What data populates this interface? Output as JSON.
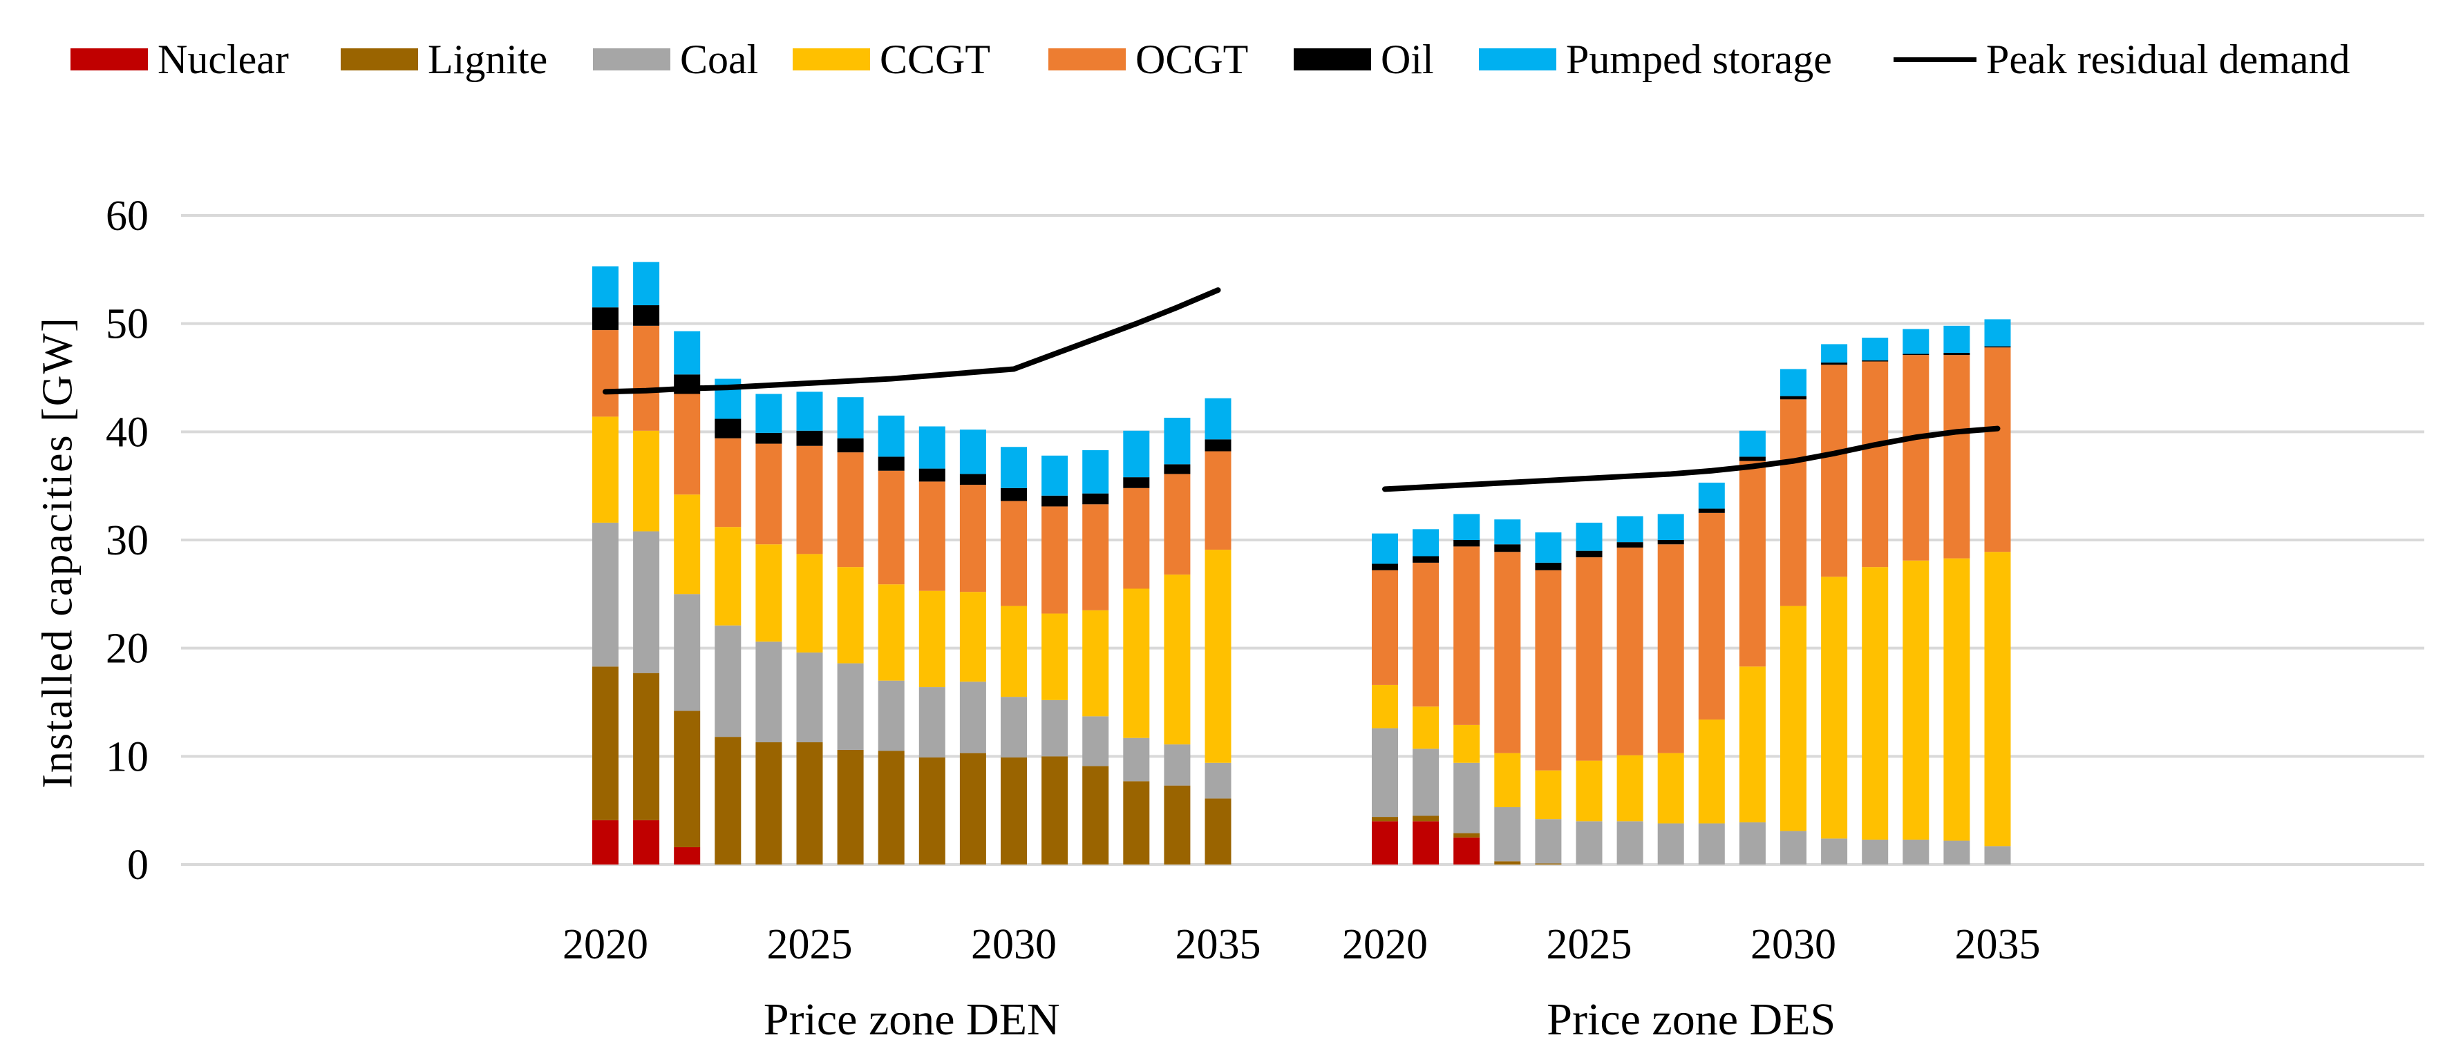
{
  "figure": {
    "description": "Stacked bar chart of installed capacities by technology with peak residual demand line, for two German price zones",
    "background_color": "#FFFFFF"
  },
  "legend": {
    "items": [
      {
        "label": "Nuclear",
        "color": "#C00000",
        "symbol": "swatch"
      },
      {
        "label": "Lignite",
        "color": "#9A6400",
        "symbol": "swatch"
      },
      {
        "label": "Coal",
        "color": "#A6A6A6",
        "symbol": "swatch"
      },
      {
        "label": "CCGT",
        "color": "#FFC000",
        "symbol": "swatch"
      },
      {
        "label": "OCGT",
        "color": "#ED7D31",
        "symbol": "swatch"
      },
      {
        "label": "Oil",
        "color": "#000000",
        "symbol": "swatch"
      },
      {
        "label": "Pumped storage",
        "color": "#00B0F0",
        "symbol": "swatch"
      },
      {
        "label": "Peak residual demand",
        "color": "#000000",
        "symbol": "line"
      }
    ]
  },
  "y_axis": {
    "title": "Installed capacities [GW]",
    "ticks": [
      0,
      10,
      20,
      30,
      40,
      50,
      60
    ],
    "range": [
      0,
      60
    ]
  },
  "chart_data": {
    "type": "bar",
    "subtype": "stacked-bars-with-line",
    "unit": "GW",
    "grid": true,
    "grid_color": "#D9D9D9",
    "line_color": "#000000",
    "ylim": [
      0,
      60
    ],
    "stack_order": [
      "Nuclear",
      "Lignite",
      "Coal",
      "CCGT",
      "OCGT",
      "Oil",
      "Pumped storage"
    ],
    "colors": {
      "Nuclear": "#C00000",
      "Lignite": "#9A6400",
      "Coal": "#A6A6A6",
      "CCGT": "#FFC000",
      "OCGT": "#ED7D31",
      "Oil": "#000000",
      "Pumped storage": "#00B0F0"
    },
    "zones": [
      {
        "name": "Price zone DEN",
        "years": [
          2020,
          2021,
          2022,
          2023,
          2024,
          2025,
          2026,
          2027,
          2028,
          2029,
          2030,
          2031,
          2032,
          2033,
          2034,
          2035
        ],
        "x_tick_labels": [
          "2020",
          "2025",
          "2030",
          "2035"
        ],
        "series": [
          {
            "name": "Nuclear",
            "values": [
              4.1,
              4.1,
              1.6,
              0,
              0,
              0,
              0,
              0,
              0,
              0,
              0,
              0,
              0,
              0,
              0,
              0
            ]
          },
          {
            "name": "Lignite",
            "values": [
              14.2,
              13.6,
              12.6,
              11.8,
              11.3,
              11.3,
              10.6,
              10.5,
              9.9,
              10.3,
              9.9,
              10.0,
              9.1,
              7.7,
              7.3,
              6.1
            ]
          },
          {
            "name": "Coal",
            "values": [
              13.3,
              13.1,
              10.8,
              10.3,
              9.3,
              8.3,
              8.0,
              6.5,
              6.5,
              6.6,
              5.6,
              5.2,
              4.6,
              4.0,
              3.8,
              3.3
            ]
          },
          {
            "name": "CCGT",
            "values": [
              9.8,
              9.3,
              9.2,
              9.1,
              9.0,
              9.1,
              8.9,
              8.9,
              8.9,
              8.3,
              8.4,
              8.0,
              9.8,
              13.8,
              15.7,
              19.7
            ]
          },
          {
            "name": "OCGT",
            "values": [
              8.0,
              9.7,
              9.3,
              8.2,
              9.3,
              10.0,
              10.6,
              10.5,
              10.1,
              9.9,
              9.7,
              9.9,
              9.8,
              9.3,
              9.3,
              9.1
            ]
          },
          {
            "name": "Oil",
            "values": [
              2.1,
              1.9,
              1.8,
              1.8,
              1.0,
              1.4,
              1.3,
              1.3,
              1.2,
              1.0,
              1.2,
              1.0,
              1.0,
              1.0,
              0.9,
              1.1
            ]
          },
          {
            "name": "Pumped storage",
            "values": [
              3.8,
              4.0,
              4.0,
              3.7,
              3.6,
              3.6,
              3.8,
              3.8,
              3.9,
              4.1,
              3.8,
              3.7,
              4.0,
              4.3,
              4.3,
              3.8
            ]
          }
        ],
        "line": {
          "name": "Peak residual demand",
          "values": [
            43.7,
            43.8,
            44.0,
            44.1,
            44.3,
            44.5,
            44.7,
            44.9,
            45.2,
            45.5,
            45.8,
            47.2,
            48.6,
            50.0,
            51.5,
            53.1
          ]
        }
      },
      {
        "name": "Price zone DES",
        "years": [
          2020,
          2021,
          2022,
          2023,
          2024,
          2025,
          2026,
          2027,
          2028,
          2029,
          2030,
          2031,
          2032,
          2033,
          2034,
          2035
        ],
        "x_tick_labels": [
          "2020",
          "2025",
          "2030",
          "2035"
        ],
        "series": [
          {
            "name": "Nuclear",
            "values": [
              4.0,
              4.0,
              2.5,
              0,
              0,
              0,
              0,
              0,
              0,
              0,
              0,
              0,
              0,
              0,
              0,
              0
            ]
          },
          {
            "name": "Lignite",
            "values": [
              0.4,
              0.5,
              0.4,
              0.3,
              0.1,
              0,
              0,
              0,
              0,
              0,
              0,
              0,
              0,
              0,
              0,
              0
            ]
          },
          {
            "name": "Coal",
            "values": [
              8.2,
              6.2,
              6.5,
              5.0,
              4.1,
              4.0,
              4.0,
              3.8,
              3.8,
              3.9,
              3.1,
              2.4,
              2.3,
              2.3,
              2.2,
              1.7
            ]
          },
          {
            "name": "CCGT",
            "values": [
              4.0,
              3.9,
              3.5,
              5.0,
              4.5,
              5.6,
              6.1,
              6.5,
              9.6,
              14.4,
              20.8,
              24.2,
              25.2,
              25.8,
              26.1,
              27.2
            ]
          },
          {
            "name": "OCGT",
            "values": [
              10.6,
              13.3,
              16.5,
              18.6,
              18.5,
              18.8,
              19.2,
              19.3,
              19.1,
              19.0,
              19.1,
              19.6,
              19.0,
              19.0,
              18.8,
              18.9
            ]
          },
          {
            "name": "Oil",
            "values": [
              0.6,
              0.6,
              0.6,
              0.7,
              0.7,
              0.6,
              0.5,
              0.4,
              0.4,
              0.4,
              0.3,
              0.2,
              0.1,
              0.1,
              0.2,
              0.1
            ]
          },
          {
            "name": "Pumped storage",
            "values": [
              2.8,
              2.5,
              2.4,
              2.3,
              2.8,
              2.6,
              2.4,
              2.4,
              2.4,
              2.4,
              2.5,
              1.7,
              2.1,
              2.3,
              2.5,
              2.5
            ]
          }
        ],
        "line": {
          "name": "Peak residual demand",
          "values": [
            34.7,
            34.9,
            35.1,
            35.3,
            35.5,
            35.7,
            35.9,
            36.1,
            36.4,
            36.8,
            37.3,
            38.0,
            38.8,
            39.5,
            40.0,
            40.3
          ]
        }
      }
    ]
  }
}
